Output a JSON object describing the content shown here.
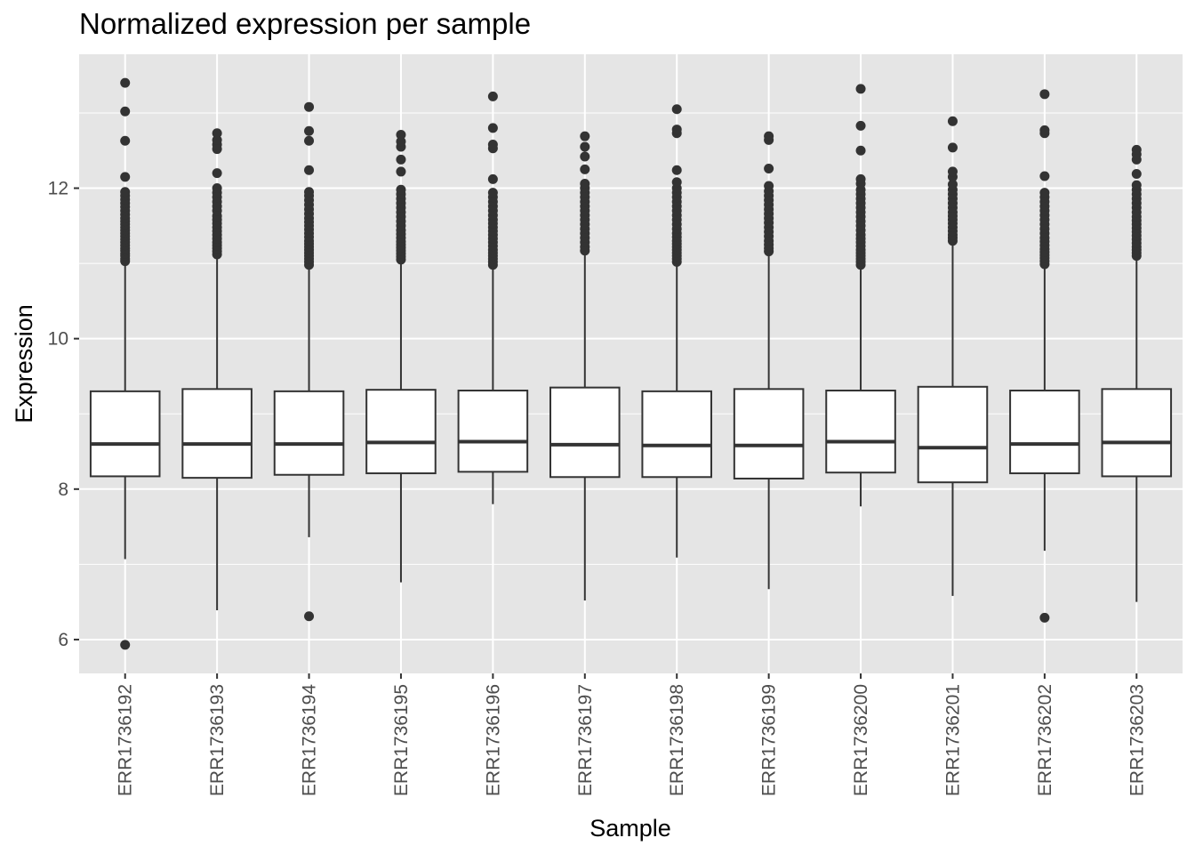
{
  "chart_data": {
    "type": "boxplot",
    "title": "Normalized expression per sample",
    "xlabel": "Sample",
    "ylabel": "Expression",
    "ylim": [
      5.55,
      13.78
    ],
    "yticks": [
      6,
      8,
      10,
      12
    ],
    "grid": true,
    "legend": "none",
    "colors": {
      "panel": "#e5e5e5",
      "grid": "#ffffff",
      "box_fill": "#ffffff",
      "stroke": "#333333",
      "text": "#4d4d4d"
    },
    "categories": [
      "ERR1736192",
      "ERR1736193",
      "ERR1736194",
      "ERR1736195",
      "ERR1736196",
      "ERR1736197",
      "ERR1736198",
      "ERR1736199",
      "ERR1736200",
      "ERR1736201",
      "ERR1736202",
      "ERR1736203"
    ],
    "boxes": [
      {
        "sample": "ERR1736192",
        "whisker_low": 7.07,
        "q1": 8.17,
        "median": 8.6,
        "q3": 9.3,
        "whisker_high": 11.0,
        "outliers": [
          5.93,
          11.03,
          11.06,
          11.1,
          11.13,
          11.17,
          11.2,
          11.24,
          11.28,
          11.32,
          11.36,
          11.4,
          11.44,
          11.48,
          11.52,
          11.56,
          11.6,
          11.65,
          11.7,
          11.75,
          11.8,
          11.85,
          11.9,
          11.95,
          12.15,
          12.63,
          13.02,
          13.4
        ]
      },
      {
        "sample": "ERR1736193",
        "whisker_low": 6.39,
        "q1": 8.15,
        "median": 8.6,
        "q3": 9.33,
        "whisker_high": 11.07,
        "outliers": [
          11.12,
          11.16,
          11.2,
          11.24,
          11.28,
          11.33,
          11.38,
          11.43,
          11.48,
          11.53,
          11.58,
          11.63,
          11.7,
          11.76,
          11.82,
          11.88,
          11.94,
          12.0,
          12.2,
          12.52,
          12.58,
          12.64,
          12.73
        ]
      },
      {
        "sample": "ERR1736194",
        "whisker_low": 7.36,
        "q1": 8.19,
        "median": 8.6,
        "q3": 9.3,
        "whisker_high": 10.95,
        "outliers": [
          6.31,
          10.98,
          11.02,
          11.06,
          11.1,
          11.14,
          11.18,
          11.22,
          11.26,
          11.3,
          11.35,
          11.4,
          11.45,
          11.5,
          11.55,
          11.6,
          11.66,
          11.72,
          11.78,
          11.84,
          11.9,
          11.95,
          12.24,
          12.63,
          12.76,
          13.08
        ]
      },
      {
        "sample": "ERR1736195",
        "whisker_low": 6.76,
        "q1": 8.21,
        "median": 8.62,
        "q3": 9.32,
        "whisker_high": 11.0,
        "outliers": [
          11.05,
          11.09,
          11.13,
          11.17,
          11.21,
          11.25,
          11.29,
          11.34,
          11.39,
          11.44,
          11.5,
          11.56,
          11.62,
          11.68,
          11.74,
          11.8,
          11.86,
          11.92,
          11.98,
          12.22,
          12.38,
          12.55,
          12.62,
          12.71
        ]
      },
      {
        "sample": "ERR1736196",
        "whisker_low": 7.8,
        "q1": 8.23,
        "median": 8.63,
        "q3": 9.31,
        "whisker_high": 10.95,
        "outliers": [
          10.98,
          11.02,
          11.06,
          11.1,
          11.14,
          11.18,
          11.23,
          11.28,
          11.33,
          11.38,
          11.43,
          11.48,
          11.53,
          11.58,
          11.64,
          11.7,
          11.76,
          11.82,
          11.88,
          11.94,
          12.12,
          12.53,
          12.58,
          12.8,
          13.22
        ]
      },
      {
        "sample": "ERR1736197",
        "whisker_low": 6.52,
        "q1": 8.16,
        "median": 8.59,
        "q3": 9.35,
        "whisker_high": 11.14,
        "outliers": [
          11.17,
          11.22,
          11.28,
          11.34,
          11.4,
          11.46,
          11.52,
          11.58,
          11.64,
          11.7,
          11.76,
          11.82,
          11.88,
          11.94,
          12.0,
          12.06,
          12.25,
          12.42,
          12.55,
          12.69
        ]
      },
      {
        "sample": "ERR1736198",
        "whisker_low": 7.09,
        "q1": 8.16,
        "median": 8.58,
        "q3": 9.3,
        "whisker_high": 10.99,
        "outliers": [
          11.02,
          11.06,
          11.1,
          11.14,
          11.18,
          11.22,
          11.26,
          11.3,
          11.35,
          11.4,
          11.46,
          11.52,
          11.58,
          11.64,
          11.7,
          11.76,
          11.82,
          11.88,
          11.94,
          12.0,
          12.08,
          12.24,
          12.73,
          12.78,
          13.05
        ]
      },
      {
        "sample": "ERR1736199",
        "whisker_low": 6.67,
        "q1": 8.14,
        "median": 8.58,
        "q3": 9.33,
        "whisker_high": 11.12,
        "outliers": [
          11.16,
          11.2,
          11.25,
          11.3,
          11.36,
          11.42,
          11.48,
          11.54,
          11.6,
          11.66,
          11.72,
          11.78,
          11.84,
          11.9,
          11.96,
          12.03,
          12.26,
          12.64,
          12.69
        ]
      },
      {
        "sample": "ERR1736200",
        "whisker_low": 7.77,
        "q1": 8.22,
        "median": 8.63,
        "q3": 9.31,
        "whisker_high": 10.94,
        "outliers": [
          10.98,
          11.02,
          11.06,
          11.1,
          11.14,
          11.18,
          11.23,
          11.28,
          11.33,
          11.38,
          11.44,
          11.5,
          11.56,
          11.62,
          11.68,
          11.74,
          11.8,
          11.86,
          11.92,
          11.98,
          12.06,
          12.12,
          12.5,
          12.83,
          13.32
        ]
      },
      {
        "sample": "ERR1736201",
        "whisker_low": 6.58,
        "q1": 8.09,
        "median": 8.55,
        "q3": 9.36,
        "whisker_high": 11.27,
        "outliers": [
          11.3,
          11.34,
          11.38,
          11.43,
          11.48,
          11.53,
          11.58,
          11.63,
          11.68,
          11.74,
          11.8,
          11.86,
          11.92,
          11.98,
          12.05,
          12.15,
          12.22,
          12.54,
          12.89
        ]
      },
      {
        "sample": "ERR1736202",
        "whisker_low": 7.18,
        "q1": 8.21,
        "median": 8.6,
        "q3": 9.31,
        "whisker_high": 10.96,
        "outliers": [
          6.29,
          10.99,
          11.03,
          11.07,
          11.11,
          11.15,
          11.19,
          11.24,
          11.29,
          11.34,
          11.4,
          11.46,
          11.52,
          11.58,
          11.64,
          11.7,
          11.76,
          11.82,
          11.88,
          11.94,
          12.16,
          12.73,
          12.77,
          13.25
        ]
      },
      {
        "sample": "ERR1736203",
        "whisker_low": 6.5,
        "q1": 8.17,
        "median": 8.62,
        "q3": 9.33,
        "whisker_high": 11.07,
        "outliers": [
          11.1,
          11.14,
          11.18,
          11.22,
          11.27,
          11.32,
          11.37,
          11.42,
          11.47,
          11.52,
          11.57,
          11.62,
          11.68,
          11.74,
          11.8,
          11.86,
          11.92,
          11.98,
          12.04,
          12.19,
          12.38,
          12.45,
          12.51
        ]
      }
    ]
  }
}
